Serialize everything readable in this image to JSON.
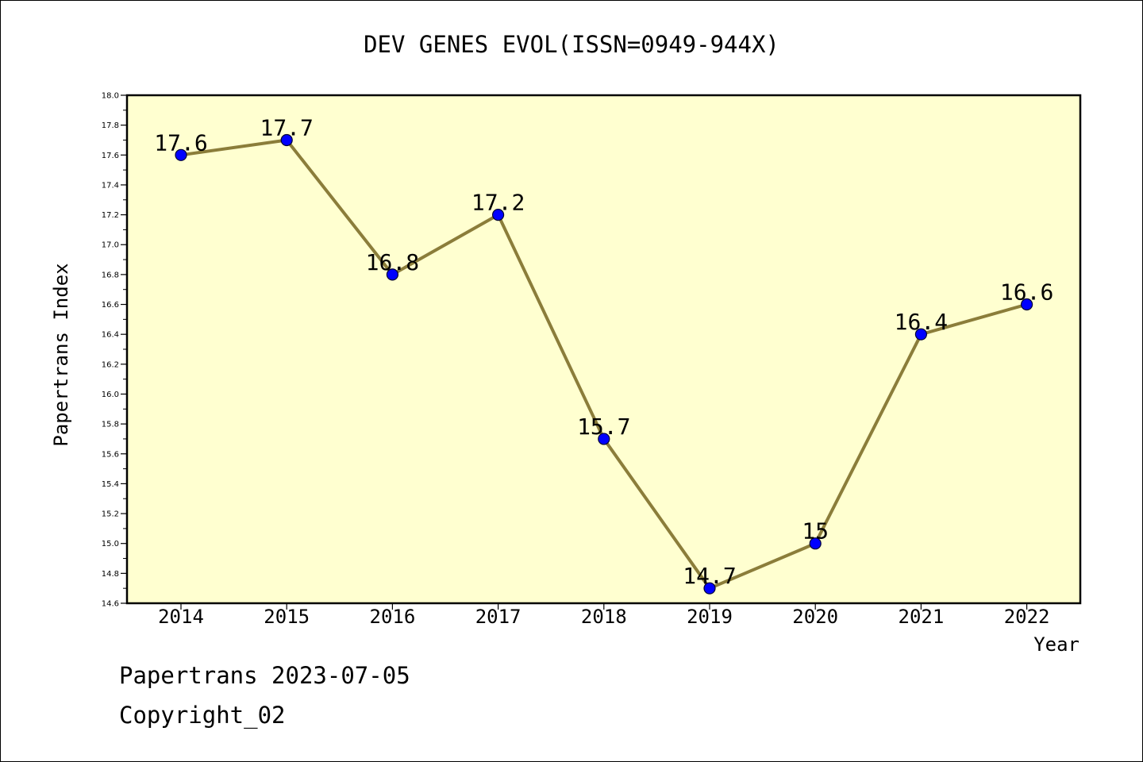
{
  "chart_data": {
    "type": "line",
    "title": "DEV GENES EVOL(ISSN=0949-944X)",
    "xlabel": "Year",
    "ylabel": "Papertrans Index",
    "categories": [
      "2014",
      "2015",
      "2016",
      "2017",
      "2018",
      "2019",
      "2020",
      "2021",
      "2022"
    ],
    "values": [
      17.6,
      17.7,
      16.8,
      17.2,
      15.7,
      14.7,
      15.0,
      16.4,
      16.6
    ],
    "data_labels": [
      "17.6",
      "17.7",
      "16.8",
      "17.2",
      "15.7",
      "14.7",
      "15",
      "16.4",
      "16.6"
    ],
    "ylim": [
      14.6,
      18.0
    ],
    "y_ticks": [
      "14.6",
      "14.8",
      "15.0",
      "15.2",
      "15.4",
      "15.6",
      "15.8",
      "16.0",
      "16.2",
      "16.4",
      "16.6",
      "16.8",
      "17.0",
      "17.2",
      "17.4",
      "17.6",
      "17.8",
      "18.0"
    ],
    "grid": false,
    "legend": "none",
    "colors": {
      "plot_background": "#ffffd0",
      "line": "#8b7d3a",
      "marker_fill": "#0000ff",
      "marker_edge": "#000033"
    }
  },
  "footer": {
    "generator": "Papertrans 2023-07-05",
    "copyright": "Copyright_02"
  }
}
